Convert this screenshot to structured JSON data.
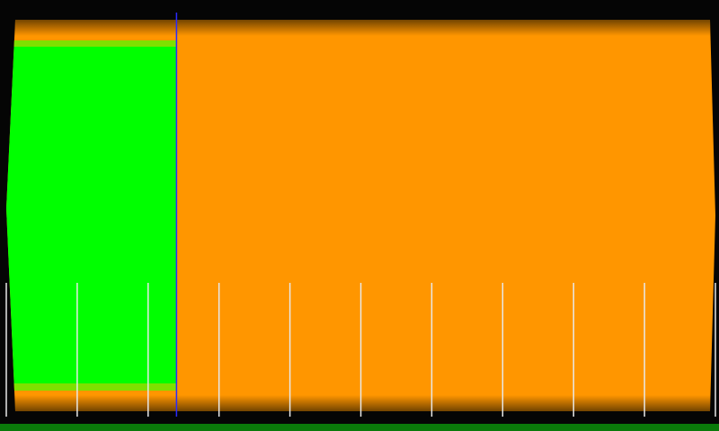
{
  "colors": {
    "background": "#050505",
    "track_fill": "#ff9600",
    "progress_fill": "#00ff00",
    "cursor_line": "#2a2aff",
    "tick_marks": "#e8e8e8",
    "bottom_bar": "#0a7a0a"
  },
  "progress": {
    "fraction": 0.24
  },
  "ticks": {
    "count": 11
  },
  "icons": {
    "cursor": "playhead-line"
  }
}
